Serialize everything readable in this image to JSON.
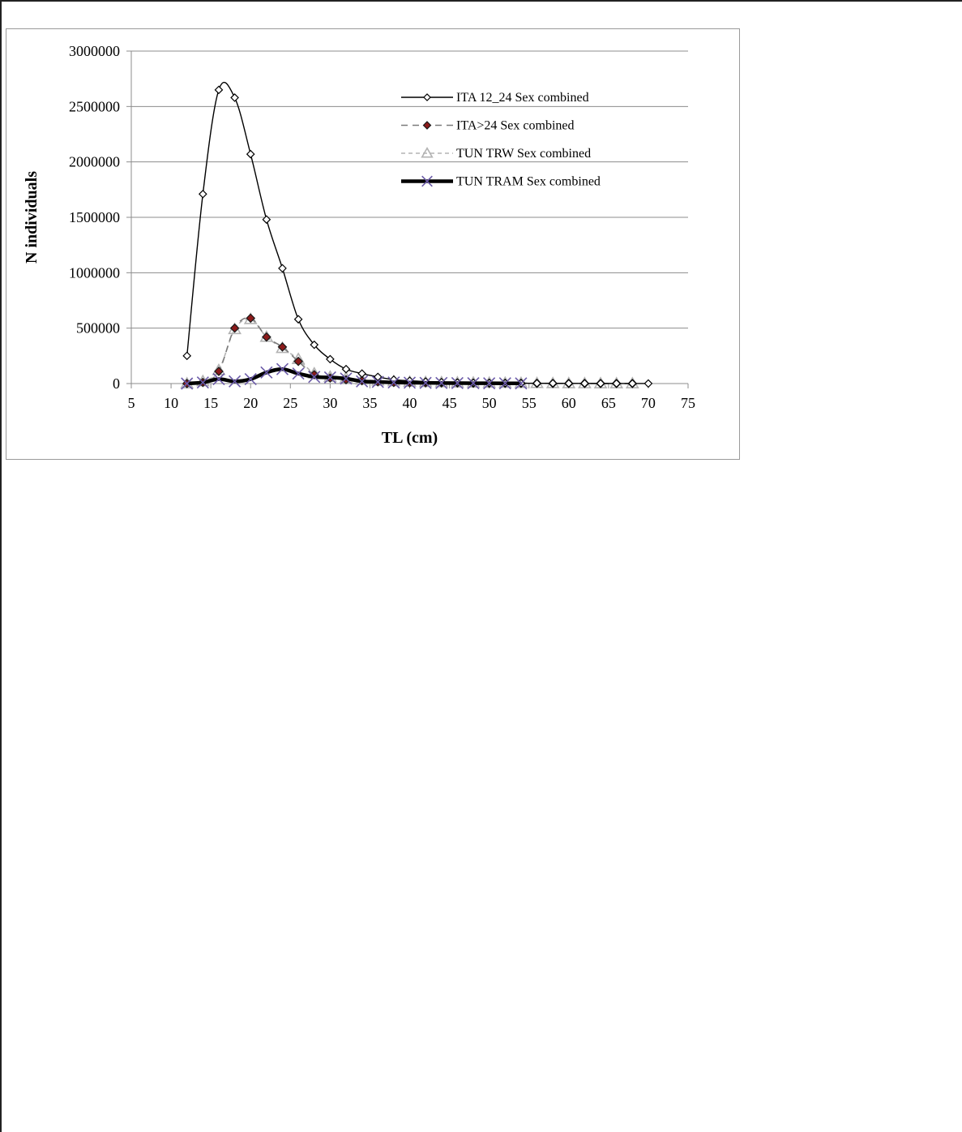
{
  "chart_data": {
    "type": "line",
    "title": "",
    "xlabel": "TL (cm)",
    "ylabel": "N individuals",
    "xlim": [
      5,
      75
    ],
    "ylim": [
      0,
      3000000
    ],
    "xticks": [
      5,
      10,
      15,
      20,
      25,
      30,
      35,
      40,
      45,
      50,
      55,
      60,
      65,
      70,
      75
    ],
    "yticks": [
      0,
      500000,
      1000000,
      1500000,
      2000000,
      2500000,
      3000000
    ],
    "ytick_labels": [
      "0",
      "500000",
      "1000000",
      "1500000",
      "2000000",
      "2500000",
      "3000000"
    ],
    "grid": "horizontal",
    "legend_position": "top-right",
    "series": [
      {
        "name": "ITA 12_24 Sex combined",
        "color": "#000000",
        "style": "solid-thin",
        "marker": "diamond-open",
        "x": [
          12,
          14,
          16,
          18,
          20,
          22,
          24,
          26,
          28,
          30,
          32,
          34,
          36,
          38,
          40,
          42,
          44,
          46,
          48,
          50,
          52,
          54,
          56,
          58,
          60,
          62,
          64,
          66,
          68,
          70
        ],
        "y": [
          250000,
          1710000,
          2650000,
          2580000,
          2070000,
          1480000,
          1040000,
          580000,
          350000,
          220000,
          130000,
          90000,
          60000,
          35000,
          25000,
          18000,
          12000,
          9000,
          7000,
          5000,
          4000,
          3000,
          2500,
          2000,
          1500,
          1200,
          1000,
          800,
          600,
          500
        ]
      },
      {
        "name": "ITA>24 Sex combined",
        "color": "#7a7a7a",
        "style": "dashed",
        "marker": "diamond-red",
        "x": [
          12,
          14,
          16,
          18,
          20,
          22,
          24,
          26,
          28,
          30,
          32,
          34,
          36,
          38,
          40,
          42,
          44,
          46,
          48,
          50,
          52,
          54,
          56,
          58,
          60,
          62,
          64,
          66,
          68
        ],
        "y": [
          0,
          10000,
          110000,
          500000,
          590000,
          420000,
          330000,
          200000,
          80000,
          50000,
          35000,
          25000,
          15000,
          10000,
          8000,
          6000,
          5000,
          4000,
          3000,
          3000,
          2000,
          2000,
          1500,
          1000,
          1000,
          800,
          600,
          500,
          400
        ]
      },
      {
        "name": "TUN TRW Sex combined",
        "color": "#b0b0b0",
        "style": "dashed-light",
        "marker": "triangle-open",
        "x": [
          12,
          14,
          16,
          18,
          20,
          22,
          24,
          26,
          28,
          30,
          32,
          34,
          36,
          38,
          40,
          42,
          44,
          46,
          48,
          50,
          52,
          54,
          56,
          58,
          60,
          62,
          64,
          66,
          68
        ],
        "y": [
          0,
          20000,
          120000,
          490000,
          580000,
          420000,
          320000,
          220000,
          90000,
          60000,
          50000,
          35000,
          25000,
          20000,
          15000,
          12000,
          10000,
          8000,
          7000,
          6000,
          5000,
          4000,
          3000,
          2000,
          1500,
          1000,
          800,
          500,
          300
        ]
      },
      {
        "name": "TUN TRAM Sex combined",
        "color": "#000000",
        "style": "solid-thick",
        "marker": "x-purple",
        "x": [
          12,
          14,
          16,
          18,
          20,
          22,
          24,
          26,
          28,
          30,
          32,
          34,
          36,
          38,
          40,
          42,
          44,
          46,
          48,
          50,
          52,
          54
        ],
        "y": [
          0,
          10000,
          40000,
          20000,
          40000,
          100000,
          130000,
          90000,
          60000,
          55000,
          45000,
          20000,
          15000,
          10000,
          8000,
          6000,
          5000,
          4000,
          3000,
          2500,
          2000,
          1500
        ]
      }
    ]
  }
}
